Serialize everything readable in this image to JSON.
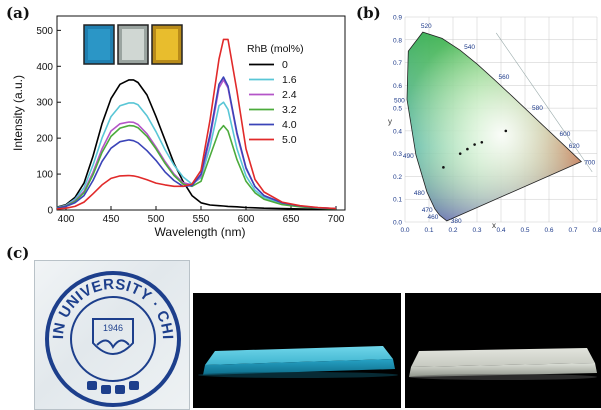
{
  "panels": {
    "a_label": "(a)",
    "b_label": "(b)",
    "c_label": "(c)"
  },
  "chart_data": [
    {
      "type": "line",
      "xlabel": "Wavelength (nm)",
      "ylabel": "Intensity (a.u.)",
      "xlim": [
        390,
        710
      ],
      "ylim": [
        0,
        540
      ],
      "xticks": [
        400,
        450,
        500,
        550,
        600,
        650,
        700
      ],
      "yticks": [
        0,
        100,
        200,
        300,
        400,
        500
      ],
      "legend_title": "RhB (mol%)",
      "legend_position": "right",
      "grid": false,
      "series": [
        {
          "name": "0",
          "color": "#000000",
          "x": [
            390,
            400,
            410,
            420,
            430,
            440,
            450,
            460,
            470,
            475,
            480,
            490,
            500,
            510,
            520,
            530,
            540,
            550,
            560,
            570,
            575,
            580,
            590,
            600,
            610,
            620,
            640,
            660,
            680,
            700
          ],
          "y": [
            8,
            15,
            35,
            75,
            150,
            240,
            310,
            350,
            362,
            362,
            355,
            320,
            260,
            195,
            130,
            80,
            40,
            20,
            14,
            12,
            11,
            10,
            9,
            7,
            6,
            5,
            4,
            3,
            2,
            2
          ]
        },
        {
          "name": "1.6",
          "color": "#59c6d6",
          "x": [
            390,
            400,
            410,
            420,
            430,
            440,
            450,
            460,
            470,
            475,
            480,
            490,
            500,
            510,
            520,
            530,
            540,
            550,
            560,
            570,
            575,
            580,
            590,
            600,
            610,
            620,
            640,
            660,
            680,
            700
          ],
          "y": [
            7,
            13,
            30,
            62,
            125,
            200,
            260,
            290,
            298,
            298,
            293,
            262,
            218,
            168,
            125,
            92,
            72,
            90,
            175,
            290,
            300,
            280,
            170,
            95,
            55,
            35,
            18,
            10,
            6,
            4
          ]
        },
        {
          "name": "2.4",
          "color": "#b455c8",
          "x": [
            390,
            400,
            410,
            420,
            430,
            440,
            450,
            460,
            470,
            475,
            480,
            490,
            500,
            510,
            520,
            530,
            540,
            550,
            560,
            570,
            575,
            580,
            590,
            600,
            610,
            620,
            640,
            660,
            680,
            700
          ],
          "y": [
            6,
            12,
            26,
            52,
            105,
            170,
            220,
            240,
            245,
            244,
            238,
            212,
            175,
            135,
            100,
            76,
            70,
            95,
            200,
            340,
            362,
            340,
            210,
            115,
            65,
            40,
            20,
            11,
            6,
            4
          ]
        },
        {
          "name": "3.2",
          "color": "#4cab3c",
          "x": [
            390,
            400,
            410,
            420,
            430,
            440,
            450,
            460,
            470,
            475,
            480,
            490,
            500,
            510,
            520,
            530,
            540,
            550,
            560,
            570,
            575,
            580,
            590,
            600,
            610,
            620,
            640,
            660,
            680,
            700
          ],
          "y": [
            6,
            11,
            24,
            48,
            98,
            160,
            205,
            228,
            235,
            234,
            229,
            205,
            170,
            130,
            96,
            72,
            66,
            80,
            150,
            220,
            235,
            220,
            140,
            80,
            48,
            30,
            15,
            9,
            5,
            3
          ]
        },
        {
          "name": "4.0",
          "color": "#3b44b8",
          "x": [
            390,
            400,
            410,
            420,
            430,
            440,
            450,
            460,
            470,
            475,
            480,
            490,
            500,
            510,
            520,
            530,
            540,
            550,
            560,
            570,
            575,
            580,
            590,
            600,
            610,
            620,
            640,
            660,
            680,
            700
          ],
          "y": [
            5,
            10,
            20,
            40,
            82,
            135,
            172,
            190,
            195,
            193,
            187,
            165,
            138,
            106,
            82,
            66,
            68,
            100,
            210,
            350,
            370,
            345,
            215,
            118,
            65,
            40,
            20,
            11,
            6,
            4
          ]
        },
        {
          "name": "5.0",
          "color": "#e12a2a",
          "x": [
            390,
            400,
            410,
            420,
            430,
            440,
            450,
            460,
            470,
            475,
            480,
            490,
            500,
            510,
            520,
            530,
            540,
            550,
            560,
            570,
            575,
            580,
            590,
            600,
            610,
            620,
            640,
            660,
            680,
            700
          ],
          "y": [
            3,
            5,
            10,
            22,
            45,
            70,
            88,
            95,
            96,
            95,
            92,
            84,
            75,
            70,
            66,
            66,
            72,
            110,
            250,
            420,
            475,
            475,
            330,
            170,
            85,
            50,
            22,
            12,
            7,
            4
          ]
        }
      ]
    },
    {
      "type": "scatter",
      "subtype": "CIE 1931 chromaticity diagram",
      "xlabel": "x",
      "ylabel": "y",
      "xlim": [
        0.0,
        0.8
      ],
      "ylim": [
        0.0,
        0.9
      ],
      "xticks": [
        "0.0",
        "0.1",
        "0.2",
        "0.3",
        "0.4",
        "0.5",
        "0.6",
        "0.7",
        "0.8"
      ],
      "yticks": [
        "0.0",
        "0.1",
        "0.2",
        "0.3",
        "0.4",
        "0.5",
        "0.6",
        "0.7",
        "0.8",
        "0.9"
      ],
      "grid": true,
      "locus_labels": [
        "380",
        "460",
        "470",
        "480",
        "490",
        "500",
        "520",
        "540",
        "560",
        "580",
        "600",
        "620",
        "700"
      ],
      "points": [
        {
          "x": 0.16,
          "y": 0.24
        },
        {
          "x": 0.23,
          "y": 0.3
        },
        {
          "x": 0.26,
          "y": 0.32
        },
        {
          "x": 0.29,
          "y": 0.34
        },
        {
          "x": 0.32,
          "y": 0.35
        },
        {
          "x": 0.42,
          "y": 0.4
        }
      ]
    }
  ],
  "photos": {
    "emblem": {
      "outer_text": "JILIN UNIVERSITY · CHINA",
      "year": "1946",
      "ink_color": "#1d3f8c"
    }
  }
}
